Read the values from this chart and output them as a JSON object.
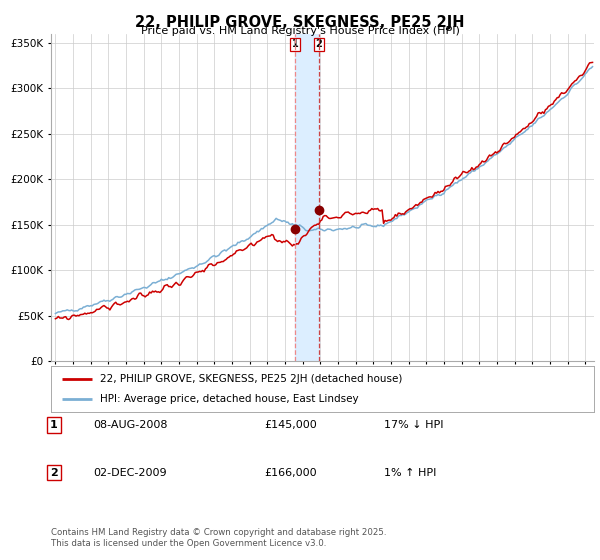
{
  "title": "22, PHILIP GROVE, SKEGNESS, PE25 2JH",
  "subtitle": "Price paid vs. HM Land Registry's House Price Index (HPI)",
  "ylim": [
    0,
    360000
  ],
  "xlim_start": 1994.75,
  "xlim_end": 2025.5,
  "yticks": [
    0,
    50000,
    100000,
    150000,
    200000,
    250000,
    300000,
    350000
  ],
  "ytick_labels": [
    "£0",
    "£50K",
    "£100K",
    "£150K",
    "£200K",
    "£250K",
    "£300K",
    "£350K"
  ],
  "transaction1_date": 2008.58,
  "transaction1_price": 145000,
  "transaction2_date": 2009.92,
  "transaction2_price": 166000,
  "legend_line1": "22, PHILIP GROVE, SKEGNESS, PE25 2JH (detached house)",
  "legend_line2": "HPI: Average price, detached house, East Lindsey",
  "table_row1": [
    "1",
    "08-AUG-2008",
    "£145,000",
    "17% ↓ HPI"
  ],
  "table_row2": [
    "2",
    "02-DEC-2009",
    "£166,000",
    "1% ↑ HPI"
  ],
  "footer": "Contains HM Land Registry data © Crown copyright and database right 2025.\nThis data is licensed under the Open Government Licence v3.0.",
  "hpi_color": "#7bafd4",
  "price_color": "#cc0000",
  "marker_color": "#880000",
  "vline1_color": "#ee8888",
  "vline2_color": "#cc4444",
  "shading_color": "#dceeff",
  "background_color": "#ffffff",
  "grid_color": "#cccccc",
  "border_color": "#aaaaaa"
}
